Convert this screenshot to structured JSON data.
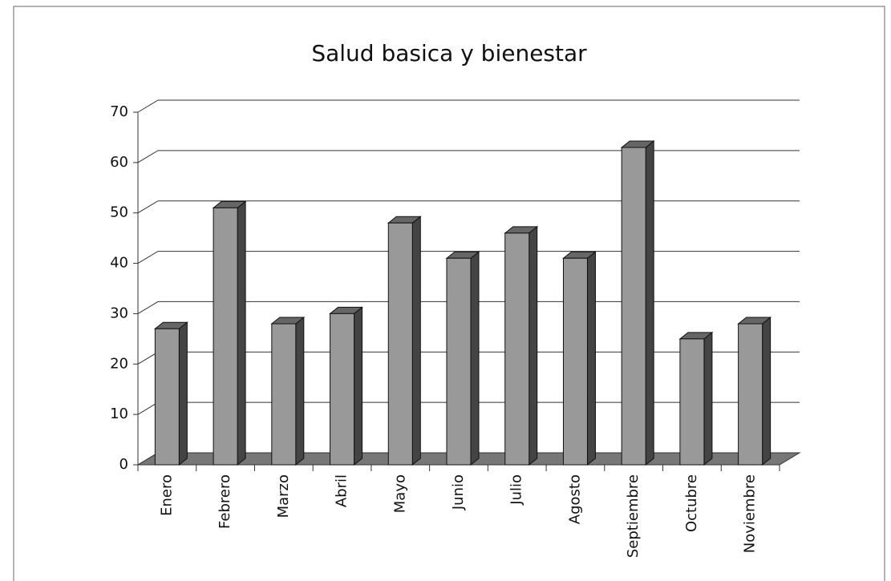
{
  "chart_data": {
    "type": "bar",
    "title": "Salud basica y bienestar",
    "categories": [
      "Enero",
      "Febrero",
      "Marzo",
      "Abril",
      "Mayo",
      "Junio",
      "Julio",
      "Agosto",
      "Septiembre",
      "Octubre",
      "Noviembre"
    ],
    "values": [
      27,
      51,
      28,
      30,
      48,
      41,
      46,
      41,
      63,
      25,
      28
    ],
    "color": "#999999",
    "ylim": [
      0,
      70
    ],
    "yticks": [
      0,
      10,
      20,
      30,
      40,
      50,
      60,
      70
    ],
    "grid": true
  }
}
